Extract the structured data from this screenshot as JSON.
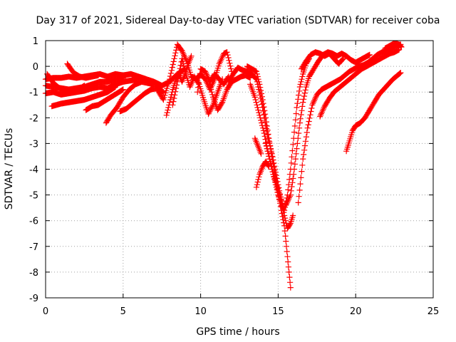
{
  "chart_data": {
    "type": "scatter",
    "title": "Day 317 of 2021, Sidereal Day-to-day VTEC variation (SDTVAR) for receiver coba",
    "xlabel": "GPS time / hours",
    "ylabel": "SDTVAR / TECUs",
    "xlim": [
      0,
      25
    ],
    "ylim": [
      -9,
      1
    ],
    "x_ticks": [
      0,
      5,
      10,
      15,
      20,
      25
    ],
    "x_tick_labels": [
      "0",
      "5",
      "10",
      "15",
      "20",
      "25"
    ],
    "y_ticks": [
      -9,
      -8,
      -7,
      -6,
      -5,
      -4,
      -3,
      -2,
      -1,
      0,
      1
    ],
    "y_tick_labels": [
      "-9",
      "-8",
      "-7",
      "-6",
      "-5",
      "-4",
      "-3",
      "-2",
      "-1",
      "0",
      "1"
    ],
    "grid": true,
    "marker": "plus",
    "color": "#ff0000",
    "series": [
      {
        "x": [
          0.0,
          0.5,
          1.0,
          1.5,
          2.0,
          2.5,
          3.0,
          3.5,
          4.0,
          4.5,
          5.0,
          5.5,
          6.0,
          6.5,
          7.0,
          7.5,
          8.0,
          8.5,
          9.0
        ],
        "y": [
          -0.5,
          -0.45,
          -0.45,
          -0.4,
          -0.45,
          -0.4,
          -0.35,
          -0.3,
          -0.4,
          -0.3,
          -0.35,
          -0.3,
          -0.4,
          -0.5,
          -0.6,
          -0.75,
          -0.6,
          -0.3,
          -0.1
        ]
      },
      {
        "x": [
          0.0,
          0.5,
          1.0,
          1.5,
          2.0,
          2.5,
          3.0,
          3.5,
          4.0,
          4.5,
          5.0
        ],
        "y": [
          -0.75,
          -0.8,
          -0.85,
          -0.9,
          -0.85,
          -0.8,
          -0.7,
          -0.6,
          -0.6,
          -0.5,
          -0.45
        ]
      },
      {
        "x": [
          0.0,
          0.5,
          1.0,
          1.5,
          2.0,
          2.5,
          3.0,
          3.5,
          4.0,
          4.5,
          5.0,
          5.5,
          6.0
        ],
        "y": [
          -1.05,
          -1.0,
          -1.1,
          -1.05,
          -1.0,
          -0.95,
          -0.85,
          -0.8,
          -0.85,
          -0.7,
          -0.6,
          -0.55,
          -0.5
        ]
      },
      {
        "x": [
          0.1,
          0.5,
          1.0,
          1.5,
          2.0,
          2.5
        ],
        "y": [
          -0.3,
          -0.65,
          -0.9,
          -1.0,
          -0.95,
          -0.75
        ]
      },
      {
        "x": [
          0.4,
          1.0,
          1.5,
          2.0,
          2.5,
          3.0,
          3.5,
          4.0,
          4.5
        ],
        "y": [
          -1.55,
          -1.45,
          -1.4,
          -1.35,
          -1.3,
          -1.2,
          -1.1,
          -1.0,
          -0.8
        ]
      },
      {
        "x": [
          1.4,
          1.8,
          2.2,
          2.6,
          3.0,
          3.4
        ],
        "y": [
          0.1,
          -0.25,
          -0.4,
          -0.45,
          -0.4,
          -0.35
        ]
      },
      {
        "x": [
          2.6,
          3.0,
          3.4,
          3.8,
          4.2,
          4.6,
          5.0
        ],
        "y": [
          -1.7,
          -1.55,
          -1.5,
          -1.35,
          -1.2,
          -1.05,
          -0.9
        ]
      },
      {
        "x": [
          3.9,
          4.2,
          4.6,
          5.0,
          5.4,
          5.8,
          6.2,
          6.6,
          7.0,
          7.4
        ],
        "y": [
          -2.2,
          -1.9,
          -1.6,
          -1.2,
          -0.9,
          -0.7,
          -0.6,
          -0.65,
          -0.7,
          -0.75
        ]
      },
      {
        "x": [
          4.8,
          5.2,
          5.6,
          6.0,
          6.4,
          6.8,
          7.2,
          7.6
        ],
        "y": [
          -1.75,
          -1.65,
          -1.45,
          -1.25,
          -1.05,
          -0.9,
          -0.85,
          -1.0
        ]
      },
      {
        "x": [
          7.8,
          8.0,
          8.2,
          8.4,
          8.6,
          8.8,
          9.0,
          9.2,
          9.4
        ],
        "y": [
          -1.9,
          -1.4,
          -0.9,
          -0.5,
          -0.3,
          -0.6,
          -0.3,
          0.1,
          0.4
        ]
      },
      {
        "x": [
          7.2,
          7.6,
          8.0,
          8.3,
          8.5,
          8.8,
          9.1,
          9.4,
          9.7,
          10.0,
          10.3,
          10.6,
          10.9,
          11.2,
          11.5,
          11.7,
          12.0
        ],
        "y": [
          -0.9,
          -1.3,
          -0.5,
          0.3,
          0.85,
          0.6,
          0.2,
          -0.4,
          -0.5,
          -0.3,
          -0.5,
          -0.9,
          -0.5,
          0.1,
          0.5,
          0.55,
          -0.2
        ]
      },
      {
        "x": [
          8.2,
          8.5,
          8.8,
          9.0,
          9.3,
          9.6,
          9.9,
          10.2,
          10.5,
          10.8,
          11.1,
          11.4
        ],
        "y": [
          -1.5,
          -0.6,
          0.3,
          -0.2,
          -0.8,
          -0.4,
          -0.7,
          -1.3,
          -1.85,
          -1.5,
          -1.0,
          -0.5
        ]
      },
      {
        "x": [
          10.5,
          10.8,
          11.1,
          11.4,
          11.7,
          12.0,
          12.3,
          12.6,
          12.9,
          13.2
        ],
        "y": [
          -0.5,
          -1.2,
          -1.7,
          -1.4,
          -0.9,
          -0.6,
          -0.5,
          -0.4,
          -0.35,
          -0.45
        ]
      },
      {
        "x": [
          9.8,
          10.0,
          10.3,
          10.6,
          10.9,
          11.2,
          11.5,
          11.8
        ],
        "y": [
          -1.0,
          -0.1,
          -0.2,
          -0.6,
          -0.3,
          -0.5,
          -0.7,
          -0.4
        ]
      },
      {
        "x": [
          11.8,
          12.1,
          12.4,
          12.7,
          13.0,
          13.3,
          13.6,
          13.8,
          14.0,
          14.2,
          14.4,
          14.6,
          14.8,
          15.0,
          15.2,
          15.4,
          15.6,
          15.8,
          15.95
        ],
        "y": [
          -0.6,
          -0.3,
          -0.05,
          -0.15,
          -0.2,
          -0.3,
          -0.5,
          -1.0,
          -1.6,
          -2.3,
          -2.9,
          -3.4,
          -4.0,
          -4.6,
          -5.2,
          -5.8,
          -6.3,
          -6.1,
          -5.8
        ]
      },
      {
        "x": [
          13.0,
          13.3,
          13.6,
          13.8,
          14.0,
          14.2,
          14.4,
          14.6,
          14.8,
          15.0,
          15.2,
          15.4,
          15.5,
          15.6,
          15.7,
          15.8
        ],
        "y": [
          0.0,
          -0.1,
          -0.2,
          -0.7,
          -1.3,
          -2.0,
          -2.8,
          -3.5,
          -4.2,
          -4.9,
          -5.6,
          -6.2,
          -6.8,
          -7.4,
          -8.0,
          -8.6
        ]
      },
      {
        "x": [
          13.2,
          13.5,
          13.8,
          14.1,
          14.3,
          14.5,
          14.7,
          14.9,
          15.1,
          15.3
        ],
        "y": [
          -0.7,
          -1.2,
          -1.9,
          -2.6,
          -3.2,
          -3.7,
          -4.2,
          -4.6,
          -5.0,
          -5.4
        ]
      },
      {
        "x": [
          13.6,
          13.8,
          14.0,
          14.2,
          14.4
        ],
        "y": [
          -4.7,
          -4.2,
          -3.9,
          -3.7,
          -3.9
        ]
      },
      {
        "x": [
          13.5,
          13.7,
          13.9
        ],
        "y": [
          -2.8,
          -3.1,
          -3.4
        ]
      },
      {
        "x": [
          14.2,
          14.4,
          14.6,
          14.8,
          15.0,
          15.2,
          15.4,
          15.6,
          15.8,
          16.0,
          16.2,
          16.4,
          16.6,
          16.8,
          17.0
        ],
        "y": [
          -3.0,
          -3.5,
          -4.0,
          -4.5,
          -5.0,
          -5.4,
          -5.6,
          -5.0,
          -4.0,
          -2.8,
          -1.6,
          -0.8,
          -0.3,
          0.1,
          0.3
        ]
      },
      {
        "x": [
          15.5,
          15.8,
          16.0,
          16.2,
          16.4,
          16.6,
          16.8,
          17.0,
          17.3,
          17.6,
          17.9,
          18.2,
          18.5,
          18.8,
          19.1,
          19.4,
          19.7,
          20.0,
          20.3,
          20.6,
          20.9
        ],
        "y": [
          -5.4,
          -5.0,
          -4.2,
          -3.2,
          -2.2,
          -1.4,
          -0.8,
          -0.4,
          -0.1,
          0.2,
          0.45,
          0.55,
          0.5,
          0.4,
          0.5,
          0.4,
          0.25,
          0.15,
          0.25,
          0.35,
          0.45
        ]
      },
      {
        "x": [
          16.5,
          16.8,
          17.1,
          17.4,
          17.7,
          18.0,
          18.3,
          18.6,
          18.9,
          19.2
        ],
        "y": [
          -0.1,
          0.2,
          0.45,
          0.55,
          0.5,
          0.4,
          0.5,
          0.3,
          0.1,
          0.3
        ]
      },
      {
        "x": [
          16.3,
          16.6,
          16.9,
          17.2,
          17.5,
          17.8,
          18.1,
          18.4,
          18.7,
          19.0,
          19.3,
          19.6,
          19.9,
          20.2,
          20.5,
          20.8,
          21.1,
          21.4,
          21.7,
          22.0,
          22.3,
          22.6,
          22.9
        ],
        "y": [
          -5.3,
          -3.6,
          -2.4,
          -1.5,
          -1.1,
          -0.9,
          -0.8,
          -0.7,
          -0.6,
          -0.5,
          -0.35,
          -0.2,
          -0.1,
          0.0,
          0.05,
          0.15,
          0.3,
          0.45,
          0.55,
          0.6,
          0.7,
          0.8,
          0.85
        ]
      },
      {
        "x": [
          17.7,
          18.0,
          18.3,
          18.6,
          18.9,
          19.2,
          19.5,
          19.8,
          20.1,
          20.4,
          20.7,
          21.0,
          21.3,
          21.6,
          21.9,
          22.2,
          22.5,
          22.8
        ],
        "y": [
          -1.95,
          -1.55,
          -1.25,
          -1.0,
          -0.85,
          -0.7,
          -0.55,
          -0.4,
          -0.25,
          -0.1,
          0.0,
          0.1,
          0.2,
          0.3,
          0.4,
          0.5,
          0.55,
          0.65
        ]
      },
      {
        "x": [
          21.9,
          22.2,
          22.5,
          22.8,
          22.95
        ],
        "y": [
          0.7,
          0.8,
          0.9,
          0.85,
          0.75
        ]
      },
      {
        "x": [
          19.4,
          19.6,
          19.8,
          20.0,
          20.3,
          20.6,
          20.9,
          21.2,
          21.5,
          21.8,
          22.1,
          22.4,
          22.7,
          22.9
        ],
        "y": [
          -3.3,
          -2.9,
          -2.5,
          -2.3,
          -2.2,
          -2.0,
          -1.7,
          -1.4,
          -1.1,
          -0.9,
          -0.7,
          -0.5,
          -0.35,
          -0.25
        ]
      }
    ]
  }
}
